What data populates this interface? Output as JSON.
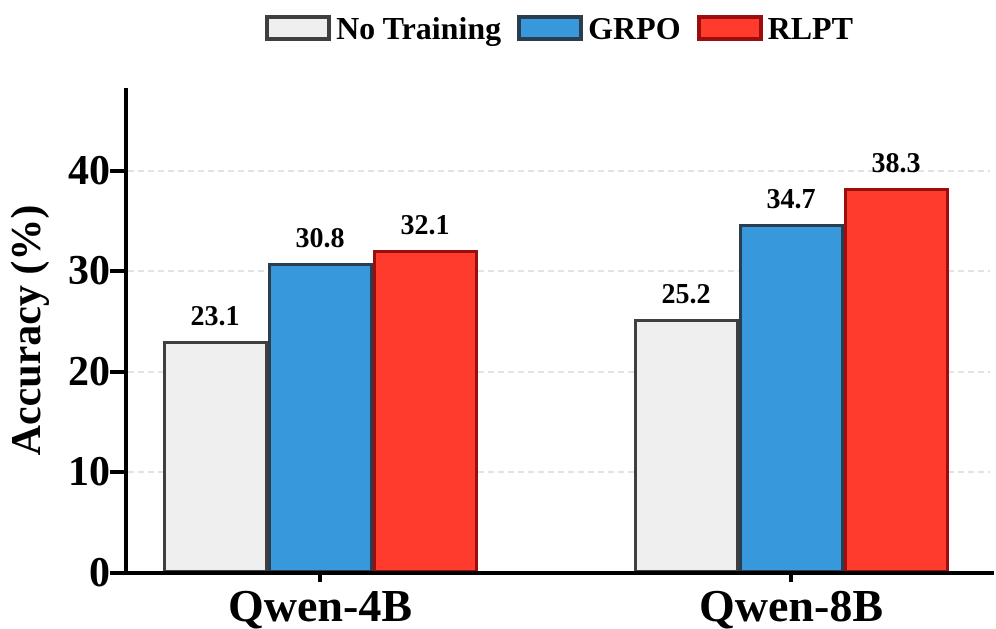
{
  "figure": {
    "background": "#ffffff",
    "axis_color": "#000000",
    "grid_color": "#e3e3e3"
  },
  "chart_data": {
    "type": "bar",
    "title": "",
    "categories": [
      "Qwen-4B",
      "Qwen-8B"
    ],
    "series": [
      {
        "name": "No Training",
        "values": [
          23.1,
          25.2
        ],
        "fill": "#efefef",
        "border": "#3f3f3f"
      },
      {
        "name": "GRPO",
        "values": [
          30.8,
          34.7
        ],
        "fill": "#3798db",
        "border": "#2b3e50"
      },
      {
        "name": "RLPT",
        "values": [
          32.1,
          38.3
        ],
        "fill": "#ff3b2d",
        "border": "#9c0d0d"
      }
    ],
    "value_labels": [
      [
        "23.1",
        "30.8",
        "32.1"
      ],
      [
        "25.2",
        "34.7",
        "38.3"
      ]
    ],
    "xlabel": "",
    "ylabel": "Accuracy (%)",
    "y_ticks": [
      0,
      10,
      20,
      30,
      40
    ],
    "ylim": [
      0,
      48.2
    ],
    "grid": "horizontal-dashed",
    "legend_position": "top-center",
    "legend_labels": [
      "No Training",
      "GRPO",
      "RLPT"
    ]
  }
}
